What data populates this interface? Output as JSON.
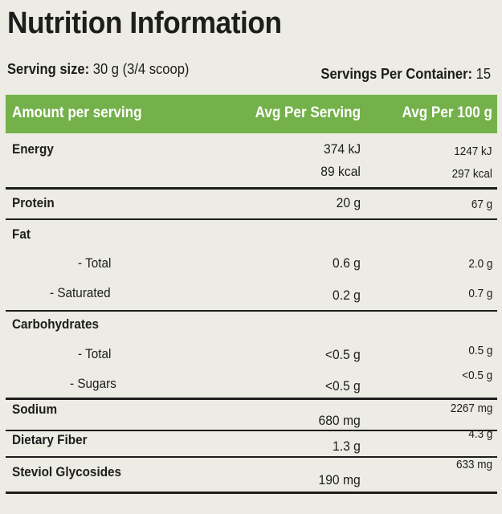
{
  "title": "Nutrition Information",
  "serving": {
    "size_label": "Serving size:",
    "size_value": "30 g (3/4 scoop)",
    "per_container_label": "Servings Per Container:",
    "per_container_value": "15"
  },
  "header": {
    "amount": "Amount per serving",
    "avg_serving": "Avg Per Serving",
    "avg_100": "Avg Per 100 g"
  },
  "rows": {
    "energy": {
      "name": "Energy",
      "kj_serving": "374 kJ",
      "kj_100": "1247 kJ",
      "kcal_serving": "89 kcal",
      "kcal_100": "297 kcal"
    },
    "protein": {
      "name": "Protein",
      "serving": "20 g",
      "per100": "67 g"
    },
    "fat": {
      "name": "Fat"
    },
    "fat_total": {
      "name": "- Total",
      "serving": "0.6 g",
      "per100": "2.0 g"
    },
    "fat_saturated": {
      "name": "- Saturated",
      "serving": "0.2 g",
      "per100": "0.7 g"
    },
    "carbs": {
      "name": "Carbohydrates"
    },
    "carbs_total": {
      "name": "- Total",
      "serving": "<0.5 g",
      "per100": "0.5 g"
    },
    "carbs_sugars": {
      "name": "- Sugars",
      "serving": "<0.5 g",
      "per100": "<0.5 g"
    },
    "sodium": {
      "name": "Sodium",
      "serving": "680 mg",
      "per100": "2267 mg"
    },
    "fiber": {
      "name": "Dietary Fiber",
      "serving": "1.3 g",
      "per100": "4.3 g"
    },
    "steviol": {
      "name": "Steviol Glycosides",
      "serving": "190 mg",
      "per100": "633 mg"
    }
  },
  "colors": {
    "header_green": "#74b14a",
    "background": "#ecebe4",
    "text": "#1d1d1b"
  }
}
